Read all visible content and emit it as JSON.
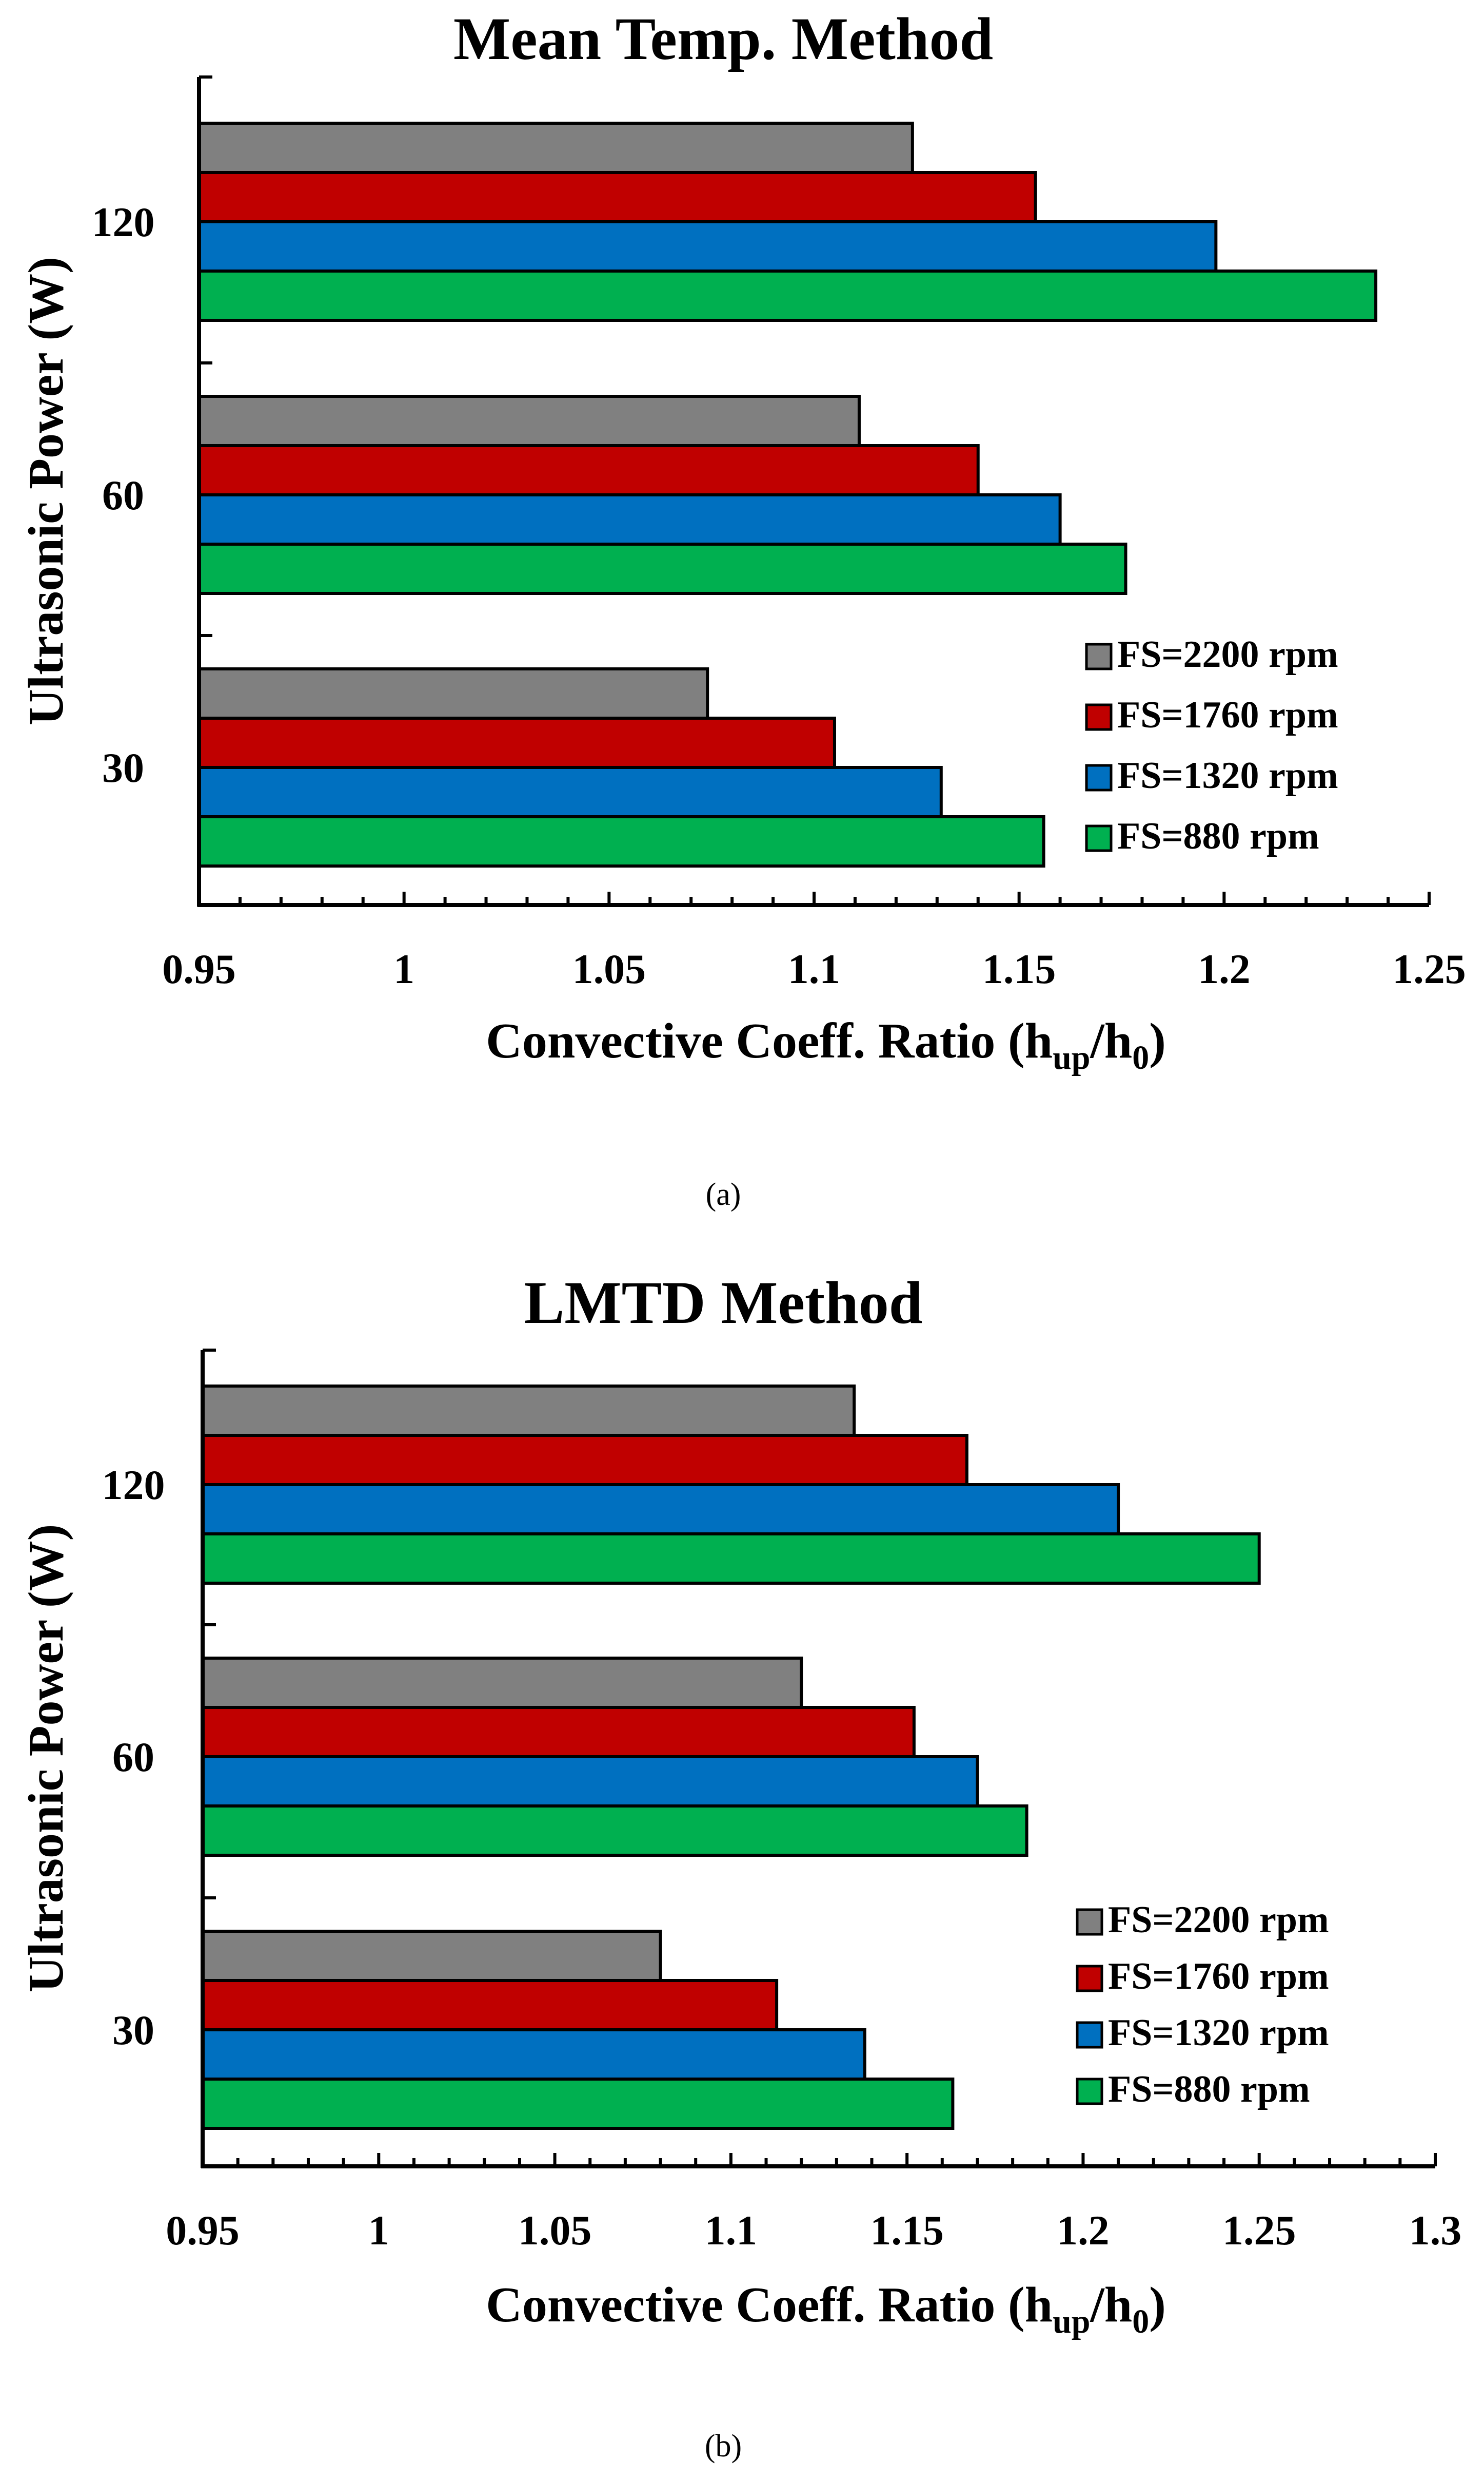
{
  "chart_data": [
    {
      "type": "bar",
      "orientation": "horizontal",
      "title": "Mean Temp. Method",
      "xlabel": "Convective Coeff. Ratio (h",
      "xlabel_sub1": "up",
      "xlabel_mid": "/h",
      "xlabel_sub2": "0",
      "xlabel_end": ")",
      "ylabel": "Ultrasonic Power (W)",
      "categories": [
        "30",
        "60",
        "120"
      ],
      "xlim": [
        0.95,
        1.25
      ],
      "xticks": [
        "0.95",
        "1",
        "1.05",
        "1.1",
        "1.15",
        "1.2",
        "1.25"
      ],
      "legend_position": "lower-right",
      "series": [
        {
          "name": "FS=2200 rpm",
          "color": "#808080",
          "values": [
            1.074,
            1.111,
            1.124
          ]
        },
        {
          "name": "FS=1760 rpm",
          "color": "#C00000",
          "values": [
            1.105,
            1.14,
            1.154
          ]
        },
        {
          "name": "FS=1320 rpm",
          "color": "#0070C0",
          "values": [
            1.131,
            1.16,
            1.198
          ]
        },
        {
          "name": "FS=880 rpm",
          "color": "#00B050",
          "values": [
            1.156,
            1.176,
            1.237
          ]
        }
      ],
      "caption": "(a)"
    },
    {
      "type": "bar",
      "orientation": "horizontal",
      "title": "LMTD Method",
      "xlabel": "Convective Coeff. Ratio (h",
      "xlabel_sub1": "up",
      "xlabel_mid": "/h",
      "xlabel_sub2": "0",
      "xlabel_end": ")",
      "ylabel": "Ultrasonic Power (W)",
      "categories": [
        "30",
        "60",
        "120"
      ],
      "xlim": [
        0.95,
        1.3
      ],
      "xticks": [
        "0.95",
        "1",
        "1.05",
        "1.1",
        "1.15",
        "1.2",
        "1.25",
        "1.3"
      ],
      "legend_position": "lower-right",
      "series": [
        {
          "name": "FS=2200 rpm",
          "color": "#808080",
          "values": [
            1.08,
            1.12,
            1.135
          ]
        },
        {
          "name": "FS=1760 rpm",
          "color": "#C00000",
          "values": [
            1.113,
            1.152,
            1.167
          ]
        },
        {
          "name": "FS=1320 rpm",
          "color": "#0070C0",
          "values": [
            1.138,
            1.17,
            1.21
          ]
        },
        {
          "name": "FS=880 rpm",
          "color": "#00B050",
          "values": [
            1.163,
            1.184,
            1.25
          ]
        }
      ],
      "caption": "(b)"
    }
  ]
}
